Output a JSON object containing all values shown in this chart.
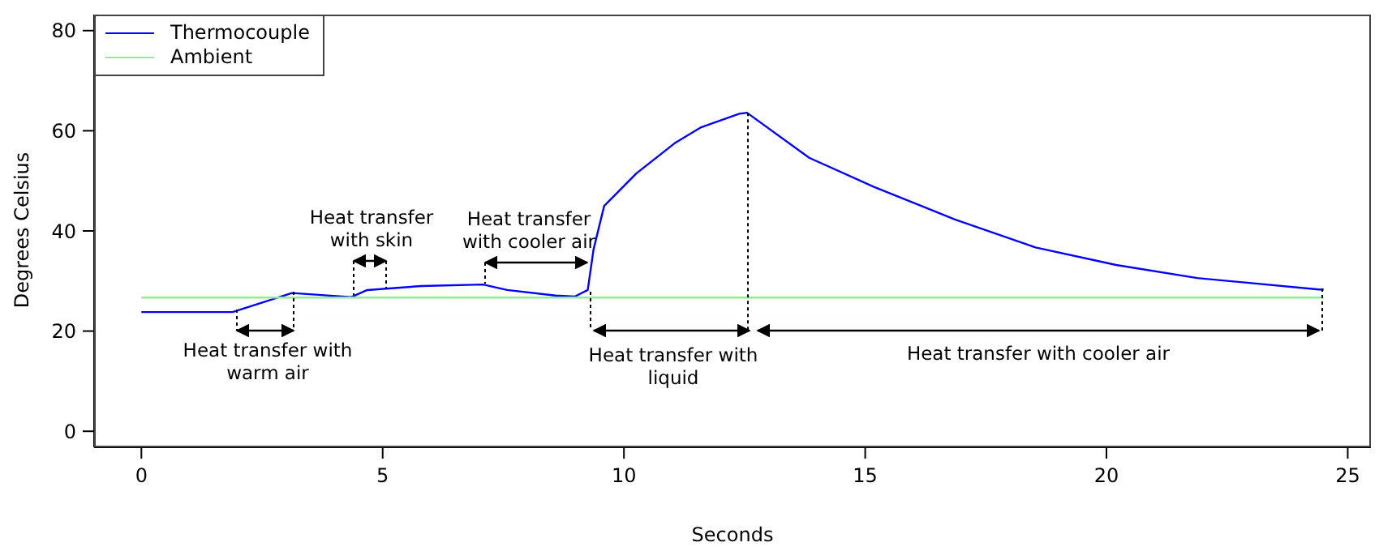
{
  "chart_data": {
    "type": "line",
    "xlabel": "Seconds",
    "ylabel": "Degrees Celsius",
    "xlim": [
      -0.98,
      25.48
    ],
    "ylim": [
      -3.2,
      83.2
    ],
    "xticks": [
      0,
      5,
      10,
      15,
      20,
      25
    ],
    "yticks": [
      0,
      20,
      40,
      60,
      80
    ],
    "grid": false,
    "legend": "top left",
    "marker": "none",
    "line_style": "solid",
    "series": [
      {
        "name": "Thermocouple",
        "color": "#0000ff",
        "x": [
          0,
          1.89,
          3.12,
          4.35,
          4.68,
          5.8,
          7.08,
          7.58,
          8.58,
          8.98,
          9.25,
          9.37,
          9.59,
          10.26,
          11.05,
          11.6,
          12.39,
          12.55,
          13.84,
          15.18,
          16.86,
          18.53,
          20.2,
          21.88,
          24.4,
          24.5
        ],
        "values": [
          23.8,
          23.8,
          27.6,
          26.8,
          28.2,
          29.0,
          29.3,
          28.2,
          27.1,
          26.9,
          28.2,
          36.3,
          45,
          51.5,
          57.5,
          60.7,
          63.4,
          63.6,
          54.6,
          48.8,
          42.3,
          36.7,
          33.2,
          30.6,
          28.3,
          28.3
        ]
      },
      {
        "name": "Ambient",
        "color": "#90ee90",
        "x": [
          0,
          24.5
        ],
        "values": [
          26.7,
          26.7
        ]
      }
    ],
    "annotations": [
      "Heat transfer with\nwarm air",
      "Heat transfer\nwith skin",
      "Heat transfer\nwith cooler air",
      {
        "text": "Heat transfer with\nliquid",
        "x": 12.57,
        "y": 63.6
      },
      "Heat transfer with cooler air"
    ]
  }
}
